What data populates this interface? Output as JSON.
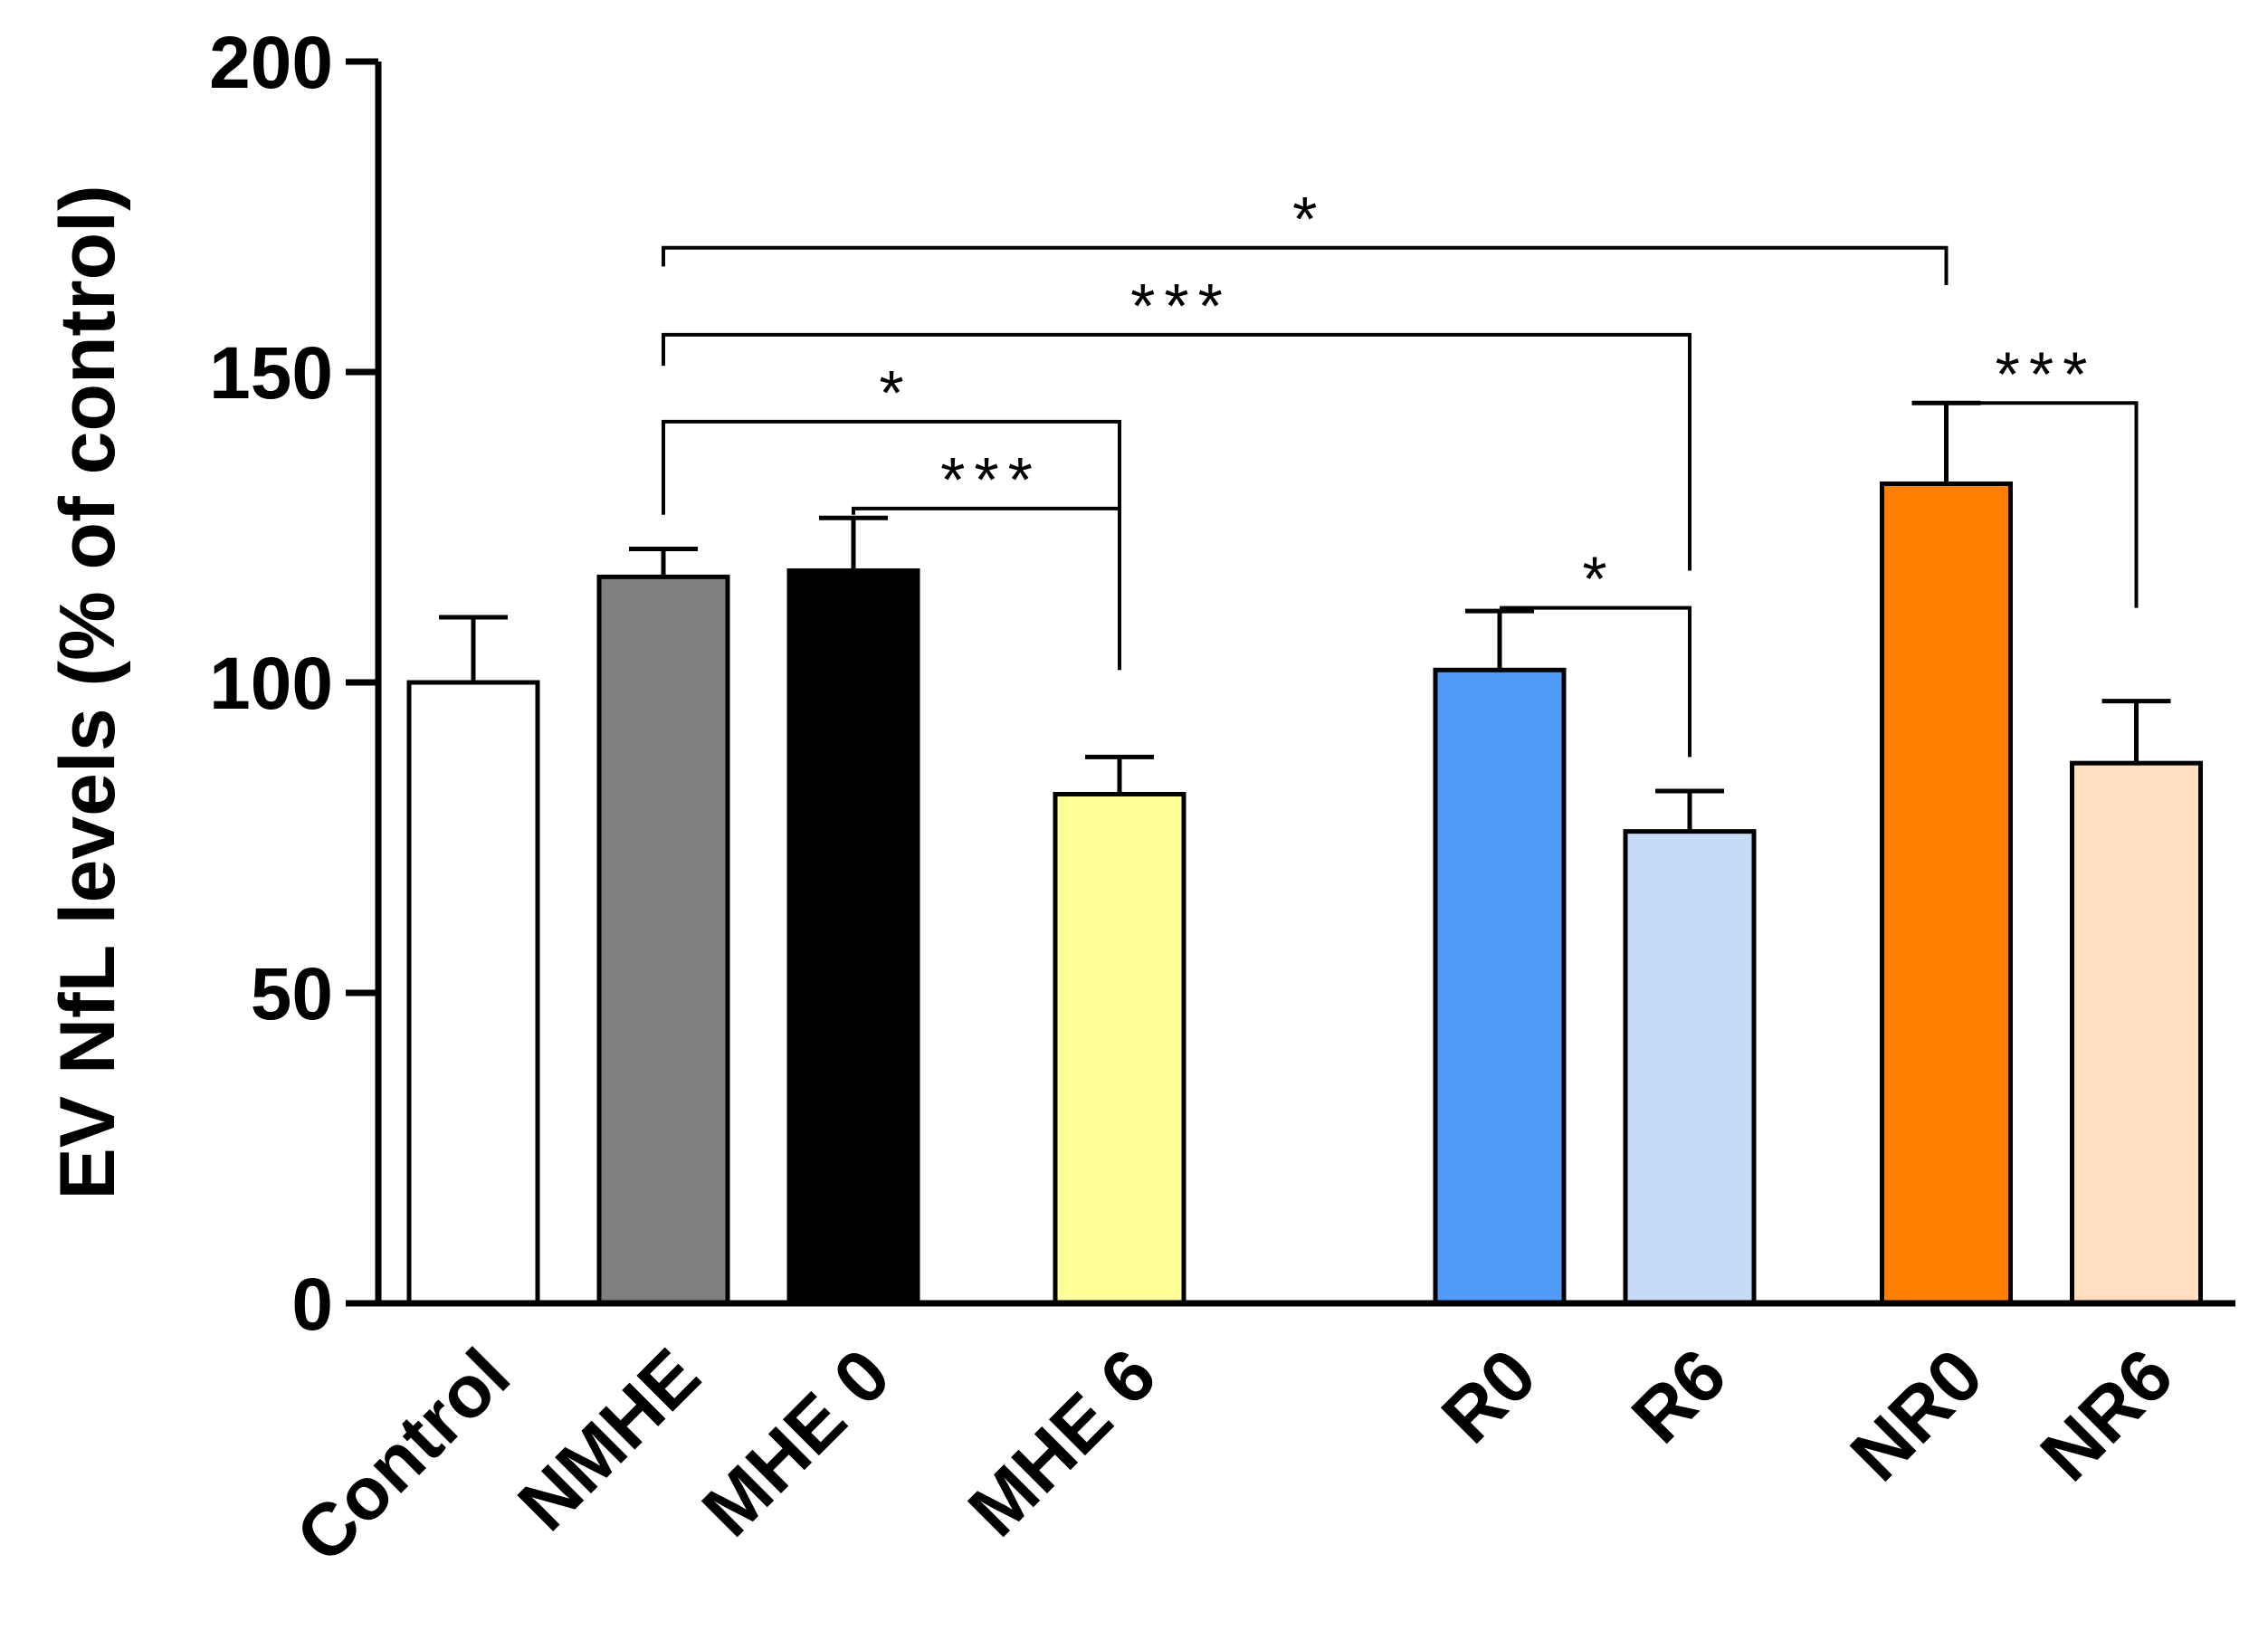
{
  "chart_data": {
    "type": "bar",
    "title": "",
    "xlabel": "",
    "ylabel": "EV NfL levels (% of control)",
    "ylim": [
      0,
      200
    ],
    "yticks": [
      0,
      50,
      100,
      150,
      200
    ],
    "grid": false,
    "bars": [
      {
        "label": "Control",
        "value": 100,
        "error": 10.5,
        "color": "#ffffff",
        "slot": 0
      },
      {
        "label": "NMHE",
        "value": 117,
        "error": 4.5,
        "color": "#7f7f7f",
        "slot": 1
      },
      {
        "label": "MHE 0",
        "value": 118,
        "error": 8.5,
        "color": "#000000",
        "slot": 2
      },
      {
        "label": "MHE 6",
        "value": 82,
        "error": 6,
        "color": "#ffff99",
        "slot": 3.4
      },
      {
        "label": "R0",
        "value": 102,
        "error": 9.5,
        "color": "#4f9bf7",
        "slot": 5.4
      },
      {
        "label": "R6",
        "value": 76,
        "error": 6.5,
        "color": "#c6dcf6",
        "slot": 6.4
      },
      {
        "label": "NR0",
        "value": 132,
        "error": 13,
        "color": "#ff7f00",
        "slot": 7.75
      },
      {
        "label": "NR6",
        "value": 87,
        "error": 10,
        "color": "#ffdfbf",
        "slot": 8.75
      }
    ],
    "significance": [
      {
        "from": 1,
        "to": 6,
        "level": 170,
        "from_drop": 167,
        "to_drop": 164,
        "label": "*"
      },
      {
        "from": 1,
        "to": 5,
        "level": 156,
        "from_drop": 151,
        "to_drop": 118,
        "label": "***"
      },
      {
        "from": 1,
        "to": 3,
        "level": 142,
        "from_drop": 127,
        "to_drop": 122,
        "label": "*"
      },
      {
        "from": 2,
        "to": 3,
        "level": 128,
        "from_drop": 127,
        "to_drop": 102,
        "label": "***"
      },
      {
        "from": 4,
        "to": 5,
        "level": 112,
        "from_drop": 112,
        "to_drop": 88,
        "label": "*"
      },
      {
        "from": 6,
        "to": 7,
        "level": 145,
        "from_drop": 145,
        "to_drop": 112,
        "label": "***"
      }
    ]
  }
}
